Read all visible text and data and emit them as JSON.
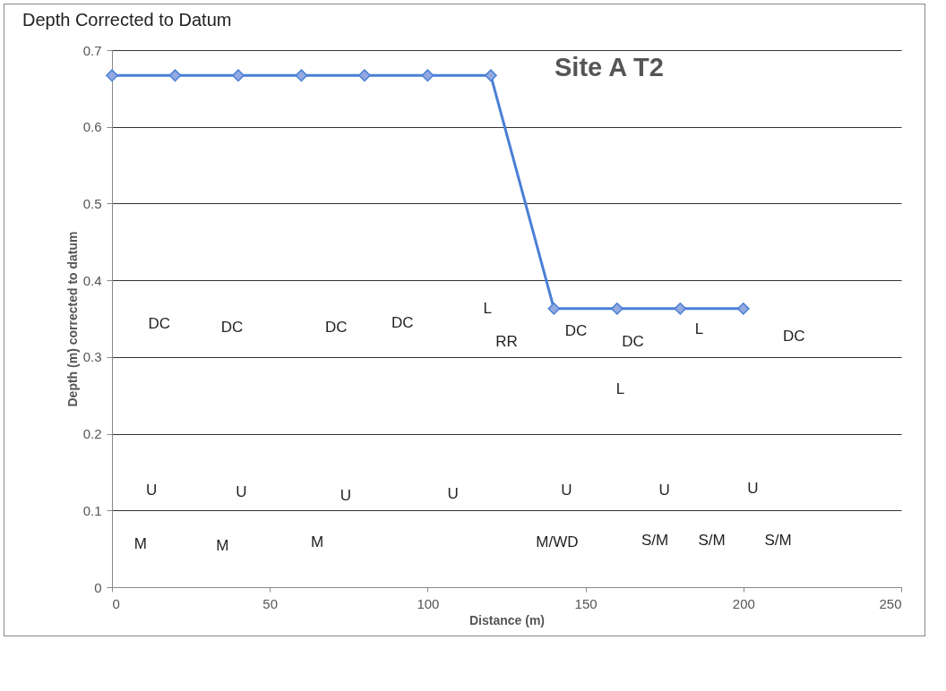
{
  "chart_data": {
    "type": "line",
    "title": "Depth Corrected to Datum",
    "subtitle": "Site A T2",
    "xlabel": "Distance (m)",
    "ylabel": "Depth (m) corrected to datum",
    "x": [
      0,
      20,
      40,
      60,
      80,
      100,
      120,
      140,
      160,
      180,
      200
    ],
    "series": [
      {
        "color": "#4a7fd6",
        "values": [
          0.667,
          0.667,
          0.667,
          0.667,
          0.667,
          0.667,
          0.667,
          0.363,
          0.363,
          0.363,
          0.363
        ]
      }
    ],
    "xlim": [
      0,
      250
    ],
    "xticks": [
      0,
      50,
      100,
      150,
      200,
      250
    ],
    "ylim": [
      0,
      0.7
    ],
    "yticks": [
      0,
      0.1,
      0.2,
      0.3,
      0.4,
      0.5,
      0.6,
      0.7
    ],
    "grid": "y",
    "marker": "diamond",
    "line_style": "solid",
    "annotations": [
      "DC",
      "DC",
      "DC",
      "DC",
      "L",
      "RR",
      "DC",
      "DC",
      "L",
      "DC",
      "L",
      "U",
      "U",
      "U",
      "U",
      "U",
      "U",
      "U",
      "M",
      "M",
      "M",
      "M/WD",
      "S/M",
      "S/M",
      "S/M"
    ]
  }
}
